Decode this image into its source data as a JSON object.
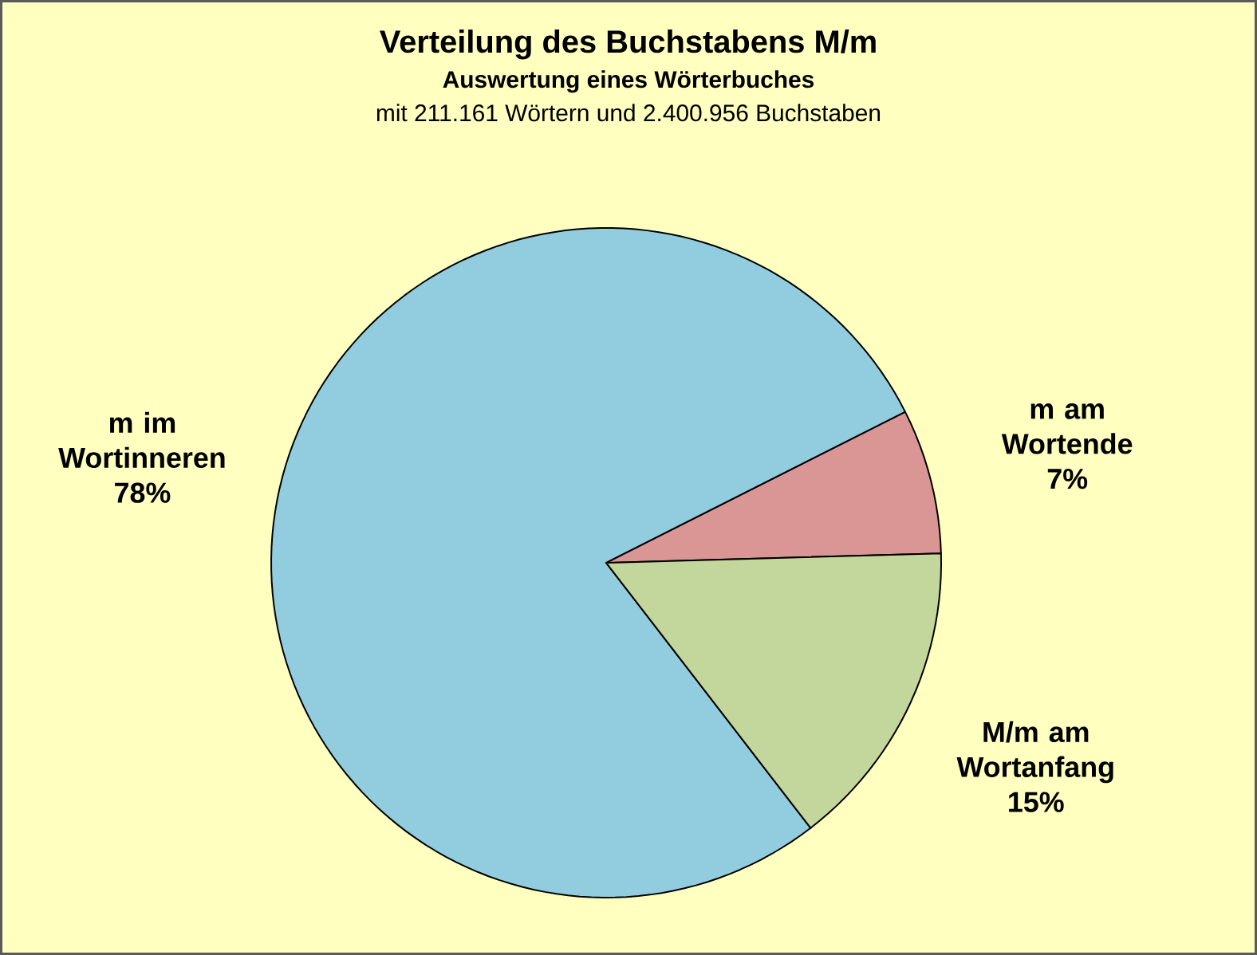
{
  "chart_data": {
    "type": "pie",
    "title": "Verteilung des Buchstabens M/m",
    "subtitle": "Auswertung eines Wörterbuches",
    "annotations": [
      "mit 211.161 Wörtern und 2.400.956 Buchstaben"
    ],
    "categories": [
      "m am Wortende",
      "m im Wortinneren",
      "M/m am Wortanfang"
    ],
    "values": [
      7,
      78,
      15
    ],
    "colors": [
      "#d99694",
      "#92cddf",
      "#c3d69b"
    ],
    "value_labels": [
      "7%",
      "78%",
      "15%"
    ]
  }
}
